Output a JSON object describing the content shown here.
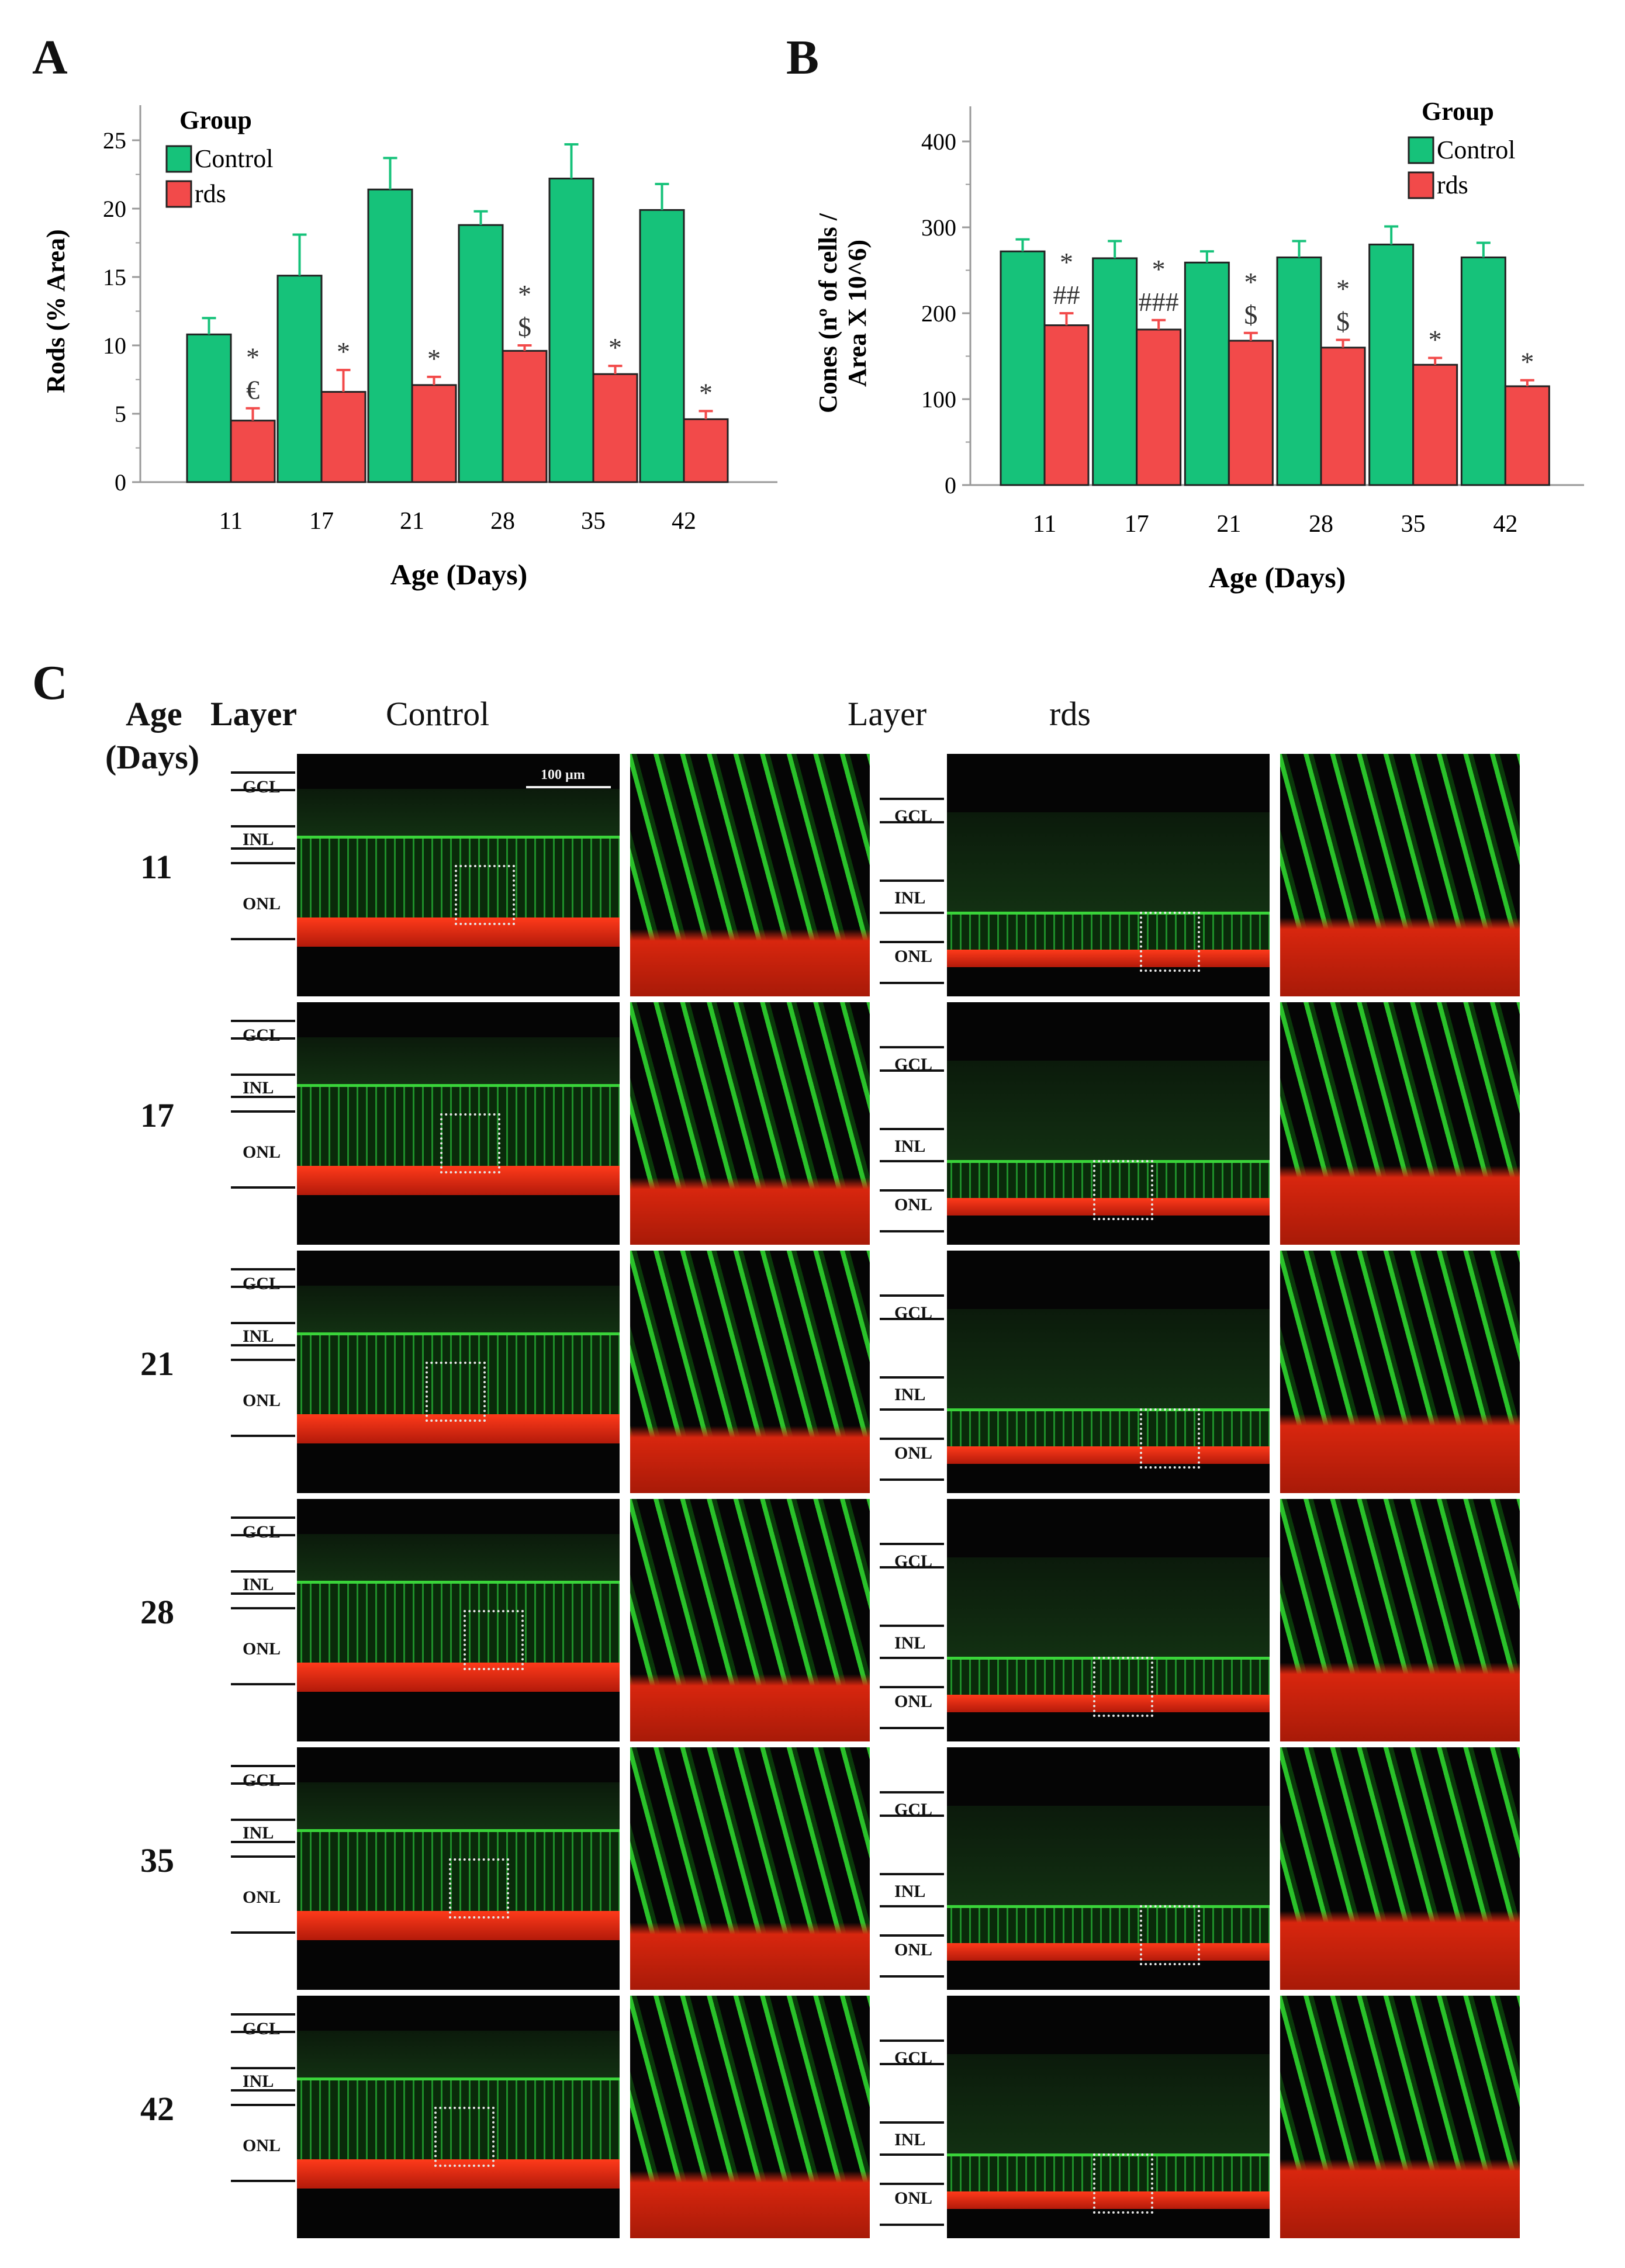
{
  "panels": {
    "a": "A",
    "b": "B",
    "c": "C"
  },
  "colors": {
    "control": "#16c27a",
    "rds": "#f24a4a"
  },
  "chart_data": [
    {
      "type": "bar",
      "title": "",
      "xlabel": "Age (Days)",
      "ylabel": "Rods (% Area)",
      "ylim": [
        0,
        25
      ],
      "yticks": [
        0,
        5,
        10,
        15,
        20,
        25
      ],
      "categories": [
        "11",
        "17",
        "21",
        "28",
        "35",
        "42"
      ],
      "legend_title": "Group",
      "series": [
        {
          "name": "Control",
          "values": [
            10.8,
            15.1,
            21.4,
            18.8,
            22.2,
            19.9
          ],
          "errors": [
            1.2,
            3.0,
            2.3,
            1.0,
            2.5,
            1.9
          ]
        },
        {
          "name": "rds",
          "values": [
            4.5,
            6.6,
            7.1,
            9.6,
            7.9,
            4.6
          ],
          "errors": [
            0.9,
            1.6,
            0.6,
            0.4,
            0.6,
            0.6
          ]
        }
      ],
      "annotations": [
        {
          "category": "11",
          "lines": [
            "*",
            "€"
          ]
        },
        {
          "category": "17",
          "lines": [
            "*"
          ]
        },
        {
          "category": "21",
          "lines": [
            "*"
          ]
        },
        {
          "category": "28",
          "lines": [
            "*",
            "$"
          ]
        },
        {
          "category": "35",
          "lines": [
            "*"
          ]
        },
        {
          "category": "42",
          "lines": [
            "*"
          ]
        }
      ]
    },
    {
      "type": "bar",
      "title": "",
      "xlabel": "Age (Days)",
      "ylabel": "Cones (nº of cells / Area X 10^6)",
      "ylabel_lines": [
        "Cones (nº of cells /",
        "Area X 10^6)"
      ],
      "ylim": [
        0,
        400
      ],
      "yticks": [
        0,
        100,
        200,
        300,
        400
      ],
      "categories": [
        "11",
        "17",
        "21",
        "28",
        "35",
        "42"
      ],
      "legend_title": "Group",
      "series": [
        {
          "name": "Control",
          "values": [
            272,
            264,
            259,
            265,
            280,
            265
          ],
          "errors": [
            14,
            20,
            13,
            19,
            21,
            17
          ]
        },
        {
          "name": "rds",
          "values": [
            186,
            181,
            168,
            160,
            140,
            115
          ],
          "errors": [
            14,
            11,
            9,
            9,
            8,
            7
          ]
        }
      ],
      "annotations": [
        {
          "category": "11",
          "lines": [
            "*",
            "##"
          ]
        },
        {
          "category": "17",
          "lines": [
            "*",
            "###"
          ]
        },
        {
          "category": "21",
          "lines": [
            "*",
            "$"
          ]
        },
        {
          "category": "28",
          "lines": [
            "*",
            "$"
          ]
        },
        {
          "category": "35",
          "lines": [
            "*"
          ]
        },
        {
          "category": "42",
          "lines": [
            "*"
          ]
        }
      ]
    }
  ],
  "panel_c": {
    "age_header": "Age",
    "age_header_unit": "(Days)",
    "layer_header": "Layer",
    "control_header": "Control",
    "rds_header": "rds",
    "scale_bar": "100 µm",
    "layers": [
      "GCL",
      "INL",
      "ONL"
    ],
    "ages": [
      "11",
      "17",
      "21",
      "28",
      "35",
      "42"
    ]
  }
}
